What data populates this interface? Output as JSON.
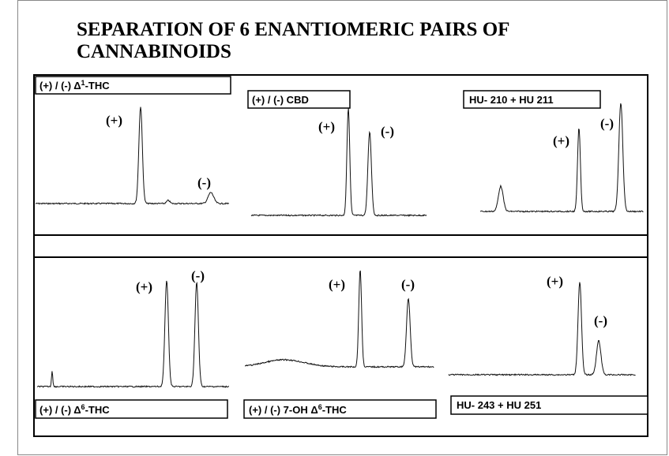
{
  "header": {
    "title": [
      "SEPARATION OF 6 ENANTIOMERIC PAIRS OF",
      "CANNABINOIDS"
    ]
  },
  "panels": [
    {
      "label": [
        "(+) /  (-) Δ",
        "1",
        "-THC"
      ],
      "peaks": [
        "(+)",
        "(-)"
      ]
    },
    {
      "label": [
        "(+) / (-) CBD"
      ],
      "peaks": [
        "(+)",
        "(-)"
      ]
    },
    {
      "label": [
        "HU- 210 + HU 211"
      ],
      "peaks": [
        "(+)",
        "(-)"
      ]
    },
    {
      "label": [
        "(+) /  (-) Δ",
        "6",
        "-THC"
      ],
      "peaks": [
        "(+)",
        "(-)"
      ]
    },
    {
      "label": [
        "(+) / (-) 7-OH Δ",
        "6",
        "-THC"
      ],
      "peaks": [
        "(+)",
        "(-)"
      ]
    },
    {
      "label": [
        "HU- 243 + HU 251"
      ],
      "peaks": [
        "(+)",
        "(-)"
      ]
    }
  ]
}
